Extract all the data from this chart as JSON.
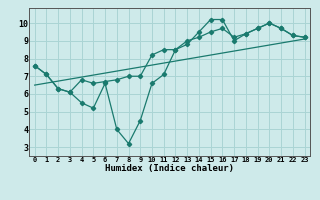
{
  "xlabel": "Humidex (Indice chaleur)",
  "ylabel": "",
  "background_color": "#ceeaea",
  "grid_color": "#aad4d4",
  "line_color": "#1a7a6e",
  "xlim": [
    -0.5,
    23.5
  ],
  "ylim": [
    2.5,
    10.85
  ],
  "xticks": [
    0,
    1,
    2,
    3,
    4,
    5,
    6,
    7,
    8,
    9,
    10,
    11,
    12,
    13,
    14,
    15,
    16,
    17,
    18,
    19,
    20,
    21,
    22,
    23
  ],
  "yticks": [
    3,
    4,
    5,
    6,
    7,
    8,
    9,
    10
  ],
  "line1_x": [
    0,
    1,
    2,
    3,
    4,
    5,
    6,
    7,
    8,
    9,
    10,
    11,
    12,
    13,
    14,
    15,
    16,
    17,
    18,
    19,
    20,
    21,
    22,
    23
  ],
  "line1_y": [
    7.6,
    7.1,
    6.3,
    6.1,
    5.5,
    5.2,
    6.6,
    4.0,
    3.2,
    4.5,
    6.6,
    7.1,
    8.5,
    8.8,
    9.5,
    10.2,
    10.2,
    9.0,
    9.4,
    9.7,
    10.0,
    9.7,
    9.3,
    9.2
  ],
  "line2_x": [
    0,
    1,
    2,
    3,
    4,
    5,
    6,
    7,
    8,
    9,
    10,
    11,
    12,
    13,
    14,
    15,
    16,
    17,
    18,
    19,
    20,
    21,
    22,
    23
  ],
  "line2_y": [
    7.6,
    7.1,
    6.3,
    6.1,
    6.8,
    6.6,
    6.7,
    6.8,
    7.0,
    7.0,
    8.2,
    8.5,
    8.5,
    9.0,
    9.2,
    9.5,
    9.7,
    9.2,
    9.4,
    9.7,
    10.0,
    9.7,
    9.3,
    9.2
  ],
  "line3_x": [
    0,
    23
  ],
  "line3_y": [
    6.5,
    9.1
  ]
}
